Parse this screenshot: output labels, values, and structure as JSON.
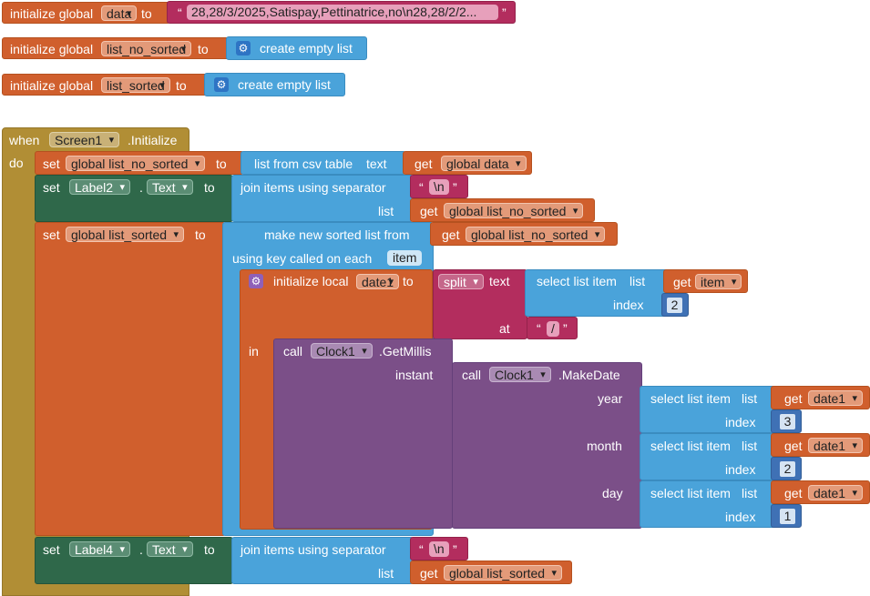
{
  "global_data": {
    "init": "initialize global",
    "name": "data",
    "to": "to",
    "value": "28,28/3/2025,Satispay,Pettinatrice,no\\n28,28/2/2..."
  },
  "global_list_no_sorted": {
    "init": "initialize global",
    "name": "list_no_sorted",
    "to": "to",
    "value": "create empty list"
  },
  "global_list_sorted": {
    "init": "initialize global",
    "name": "list_sorted",
    "to": "to",
    "value": "create empty list"
  },
  "event": {
    "when": "when",
    "component": "Screen1",
    "event": ".Initialize",
    "do": "do"
  },
  "set1": {
    "set": "set",
    "var": "global list_no_sorted",
    "to": "to",
    "func": "list from csv table",
    "arg": "text",
    "get": "get",
    "get_var": "global data"
  },
  "set2": {
    "set": "set",
    "component": "Label2",
    "dot": ".",
    "prop": "Text",
    "to": "to",
    "func": "join items using separator",
    "sep": "\\n",
    "list_label": "list",
    "get": "get",
    "get_var": "global list_no_sorted"
  },
  "set3": {
    "set": "set",
    "var": "global list_sorted",
    "to": "to",
    "func": "make new sorted list from",
    "get": "get",
    "get_var": "global list_no_sorted",
    "key_label": "using key called on each",
    "key_var": "item"
  },
  "local": {
    "init": "initialize local",
    "name": "date1",
    "to": "to",
    "split": "split",
    "text": "text",
    "select": "select list item",
    "list": "list",
    "get": "get",
    "get_var": "item",
    "index": "index",
    "index_val": "2",
    "at": "at",
    "sep": "/",
    "in": "in"
  },
  "getmillis": {
    "call": "call",
    "component": "Clock1",
    "method": ".GetMillis",
    "instant": "instant"
  },
  "makedate": {
    "call": "call",
    "component": "Clock1",
    "method": ".MakeDate"
  },
  "rows": [
    {
      "label": "year",
      "select": "select list item",
      "list": "list",
      "get": "get",
      "var": "date1",
      "index": "index",
      "index_val": "3"
    },
    {
      "label": "month",
      "select": "select list item",
      "list": "list",
      "get": "get",
      "var": "date1",
      "index": "index",
      "index_val": "2"
    },
    {
      "label": "day",
      "select": "select list item",
      "list": "list",
      "get": "get",
      "var": "date1",
      "index": "index",
      "index_val": "1"
    }
  ],
  "set4": {
    "set": "set",
    "component": "Label4",
    "dot": ".",
    "prop": "Text",
    "to": "to",
    "func": "join items using separator",
    "sep": "\\n",
    "list_label": "list",
    "get": "get",
    "get_var": "global list_sorted"
  }
}
